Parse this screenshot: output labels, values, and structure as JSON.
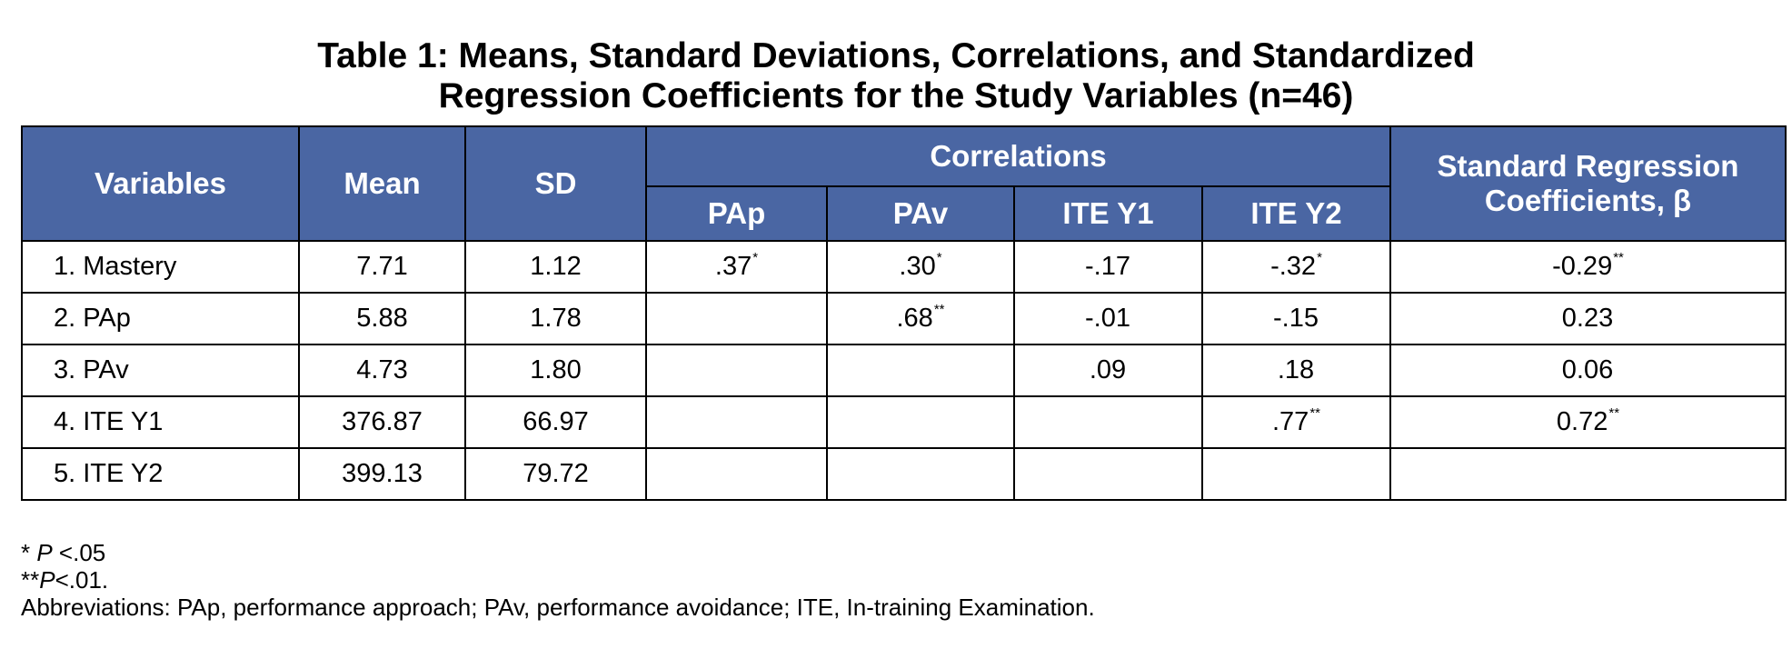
{
  "title": {
    "line1": "Table 1: Means, Standard Deviations, Correlations, and Standardized",
    "line2": "Regression Coefficients for the Study Variables (n=46)"
  },
  "header": {
    "variables": "Variables",
    "mean": "Mean",
    "sd": "SD",
    "correlations": "Correlations",
    "sub": [
      "PAp",
      "PAv",
      "ITE Y1",
      "ITE Y2"
    ],
    "reg_line1": "Standard Regression",
    "reg_line2": "Coefficients, β"
  },
  "rows": [
    {
      "variable": "1. Mastery",
      "mean": "7.71",
      "sd": "1.12",
      "cells": [
        {
          "v": ".37",
          "s": "*"
        },
        {
          "v": ".30",
          "s": "*"
        },
        {
          "v": "-.17",
          "s": ""
        },
        {
          "v": "-.32",
          "s": "*"
        },
        {
          "v": "-0.29",
          "s": "**"
        }
      ]
    },
    {
      "variable": "2. PAp",
      "mean": "5.88",
      "sd": "1.78",
      "cells": [
        {
          "v": "",
          "s": ""
        },
        {
          "v": ".68",
          "s": "**"
        },
        {
          "v": "-.01",
          "s": ""
        },
        {
          "v": "-.15",
          "s": ""
        },
        {
          "v": "0.23",
          "s": ""
        }
      ]
    },
    {
      "variable": "3. PAv",
      "mean": "4.73",
      "sd": "1.80",
      "cells": [
        {
          "v": "",
          "s": ""
        },
        {
          "v": "",
          "s": ""
        },
        {
          "v": ".09",
          "s": ""
        },
        {
          "v": ".18",
          "s": ""
        },
        {
          "v": "0.06",
          "s": ""
        }
      ]
    },
    {
      "variable": "4. ITE Y1",
      "mean": "376.87",
      "sd": "66.97",
      "cells": [
        {
          "v": "",
          "s": ""
        },
        {
          "v": "",
          "s": ""
        },
        {
          "v": "",
          "s": ""
        },
        {
          "v": ".77",
          "s": "**"
        },
        {
          "v": "0.72",
          "s": "**"
        }
      ]
    },
    {
      "variable": "5. ITE Y2",
      "mean": "399.13",
      "sd": "79.72",
      "cells": [
        {
          "v": "",
          "s": ""
        },
        {
          "v": "",
          "s": ""
        },
        {
          "v": "",
          "s": ""
        },
        {
          "v": "",
          "s": ""
        },
        {
          "v": "",
          "s": ""
        }
      ]
    }
  ],
  "footnotes": {
    "f1_mark": "* ",
    "f1_p": "P",
    "f1_rest": " <.05",
    "f2_mark": "**",
    "f2_p": "P",
    "f2_rest": "<.01.",
    "abbrev": "Abbreviations: PAp, performance approach; PAv, performance avoidance; ITE, In-training Examination."
  }
}
